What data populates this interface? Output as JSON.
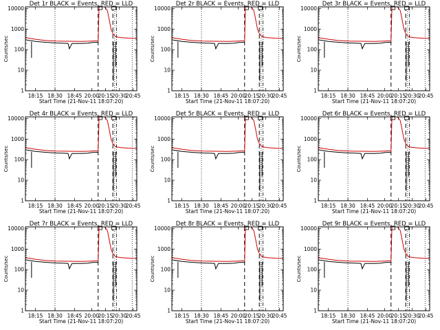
{
  "figure": {
    "x_axis_label": "Start Time (21-Nov-11 18:07:20)",
    "y_axis_label": "Counts/sec"
  },
  "chart_data": {
    "type": "line",
    "xlabel": "Start Time (21-Nov-11 18:07:20)",
    "ylabel": "Counts/sec",
    "xlim": [
      "18:07:20",
      "20:49:00"
    ],
    "x_ticks": [
      "18:15",
      "18:30",
      "18:45",
      "20:00",
      "20:15",
      "20:30",
      "20:45"
    ],
    "y_scale": "log",
    "ylim": [
      1,
      12000
    ],
    "y_ticks": [
      "1",
      "10",
      "100",
      "1000",
      "10000"
    ],
    "vertical_markers": {
      "dotted": [
        "18:30",
        "20:25",
        "20:44"
      ],
      "dashed": [
        "20:07",
        "20:23"
      ],
      "dash_dot": [
        "20:27"
      ]
    },
    "top_boxes": [
      "20:09",
      "20:24"
    ],
    "series_names": {
      "black": "Events",
      "red": "LLD"
    },
    "panels": [
      {
        "title": "Det 1r BLACK = Events, RED = LLD"
      },
      {
        "title": "Det 2r BLACK = Events, RED = LLD"
      },
      {
        "title": "Det 3r BLACK = Events, RED = LLD"
      },
      {
        "title": "Det 4r BLACK = Events, RED = LLD"
      },
      {
        "title": "Det 5r BLACK = Events, RED = LLD"
      },
      {
        "title": "Det 6r BLACK = Events, RED = LLD"
      },
      {
        "title": "Det 7r BLACK = Events, RED = LLD"
      },
      {
        "title": "Det 8r BLACK = Events, RED = LLD"
      },
      {
        "title": "Det 9r BLACK = Events, RED = LLD"
      }
    ],
    "series": [
      {
        "name": "Events",
        "color": "#000000",
        "points": [
          [
            "18:07:20",
            300
          ],
          [
            "18:15:00",
            250
          ],
          [
            "18:22:00",
            230
          ],
          [
            "18:30:00",
            210
          ],
          [
            "18:37:00",
            205
          ],
          [
            "18:40:00",
            200
          ],
          [
            "18:41:00",
            110
          ],
          [
            "18:43:00",
            200
          ],
          [
            "18:50:00",
            200
          ],
          [
            "18:55:00",
            205
          ],
          [
            "20:00:00",
            220
          ],
          [
            "20:07:00",
            230
          ]
        ]
      },
      {
        "name": "LLD",
        "color": "#cc0000",
        "points": [
          [
            "18:07:20",
            380
          ],
          [
            "18:15:00",
            320
          ],
          [
            "18:22:00",
            280
          ],
          [
            "18:30:00",
            260
          ],
          [
            "18:40:00",
            255
          ],
          [
            "18:50:00",
            250
          ],
          [
            "20:00:00",
            260
          ],
          [
            "20:07:00",
            270
          ],
          [
            "20:08:00",
            12000
          ],
          [
            "20:14:00",
            12000
          ],
          [
            "20:17:00",
            8000
          ],
          [
            "20:19:00",
            3000
          ],
          [
            "20:21:00",
            1000
          ],
          [
            "20:23:00",
            600
          ],
          [
            "20:26:00",
            420
          ],
          [
            "20:32:00",
            380
          ],
          [
            "20:40:00",
            360
          ],
          [
            "20:49:00",
            350
          ]
        ]
      }
    ]
  }
}
